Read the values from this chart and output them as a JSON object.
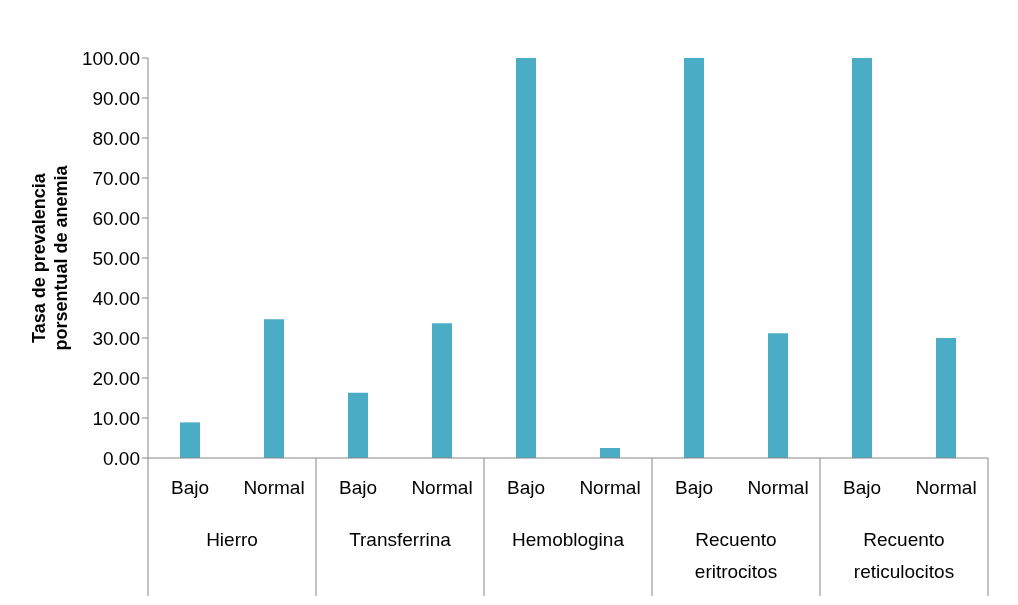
{
  "chart_data": {
    "type": "bar",
    "ylabel": "Tasa de prevalencia porsentual de anemia",
    "categories": [
      "Bajo",
      "Normal",
      "Bajo",
      "Normal",
      "Bajo",
      "Normal",
      "Bajo",
      "Normal",
      "Bajo",
      "Normal"
    ],
    "annotations": [
      "Hierro",
      "Transferrina",
      "Hemoblogina",
      "Recuento eritrocitos",
      "Recuento reticulocitos"
    ],
    "values": [
      8.9,
      34.7,
      16.3,
      33.7,
      100,
      2.5,
      100,
      31.2,
      100,
      30.0
    ],
    "color": "#4bacc6",
    "ylim": [
      0,
      100
    ],
    "yticks": [
      {
        "value": 0,
        "label": "0.00"
      },
      {
        "value": 10,
        "label": "10.00"
      },
      {
        "value": 20,
        "label": "20.00"
      },
      {
        "value": 30,
        "label": "30.00"
      },
      {
        "value": 40,
        "label": "40.00"
      },
      {
        "value": 50,
        "label": "50.00"
      },
      {
        "value": 60,
        "label": "60.00"
      },
      {
        "value": 70,
        "label": "70.00"
      },
      {
        "value": 80,
        "label": "80.00"
      },
      {
        "value": 90,
        "label": "90.00"
      },
      {
        "value": 100,
        "label": "100.00"
      }
    ],
    "grid": false
  }
}
